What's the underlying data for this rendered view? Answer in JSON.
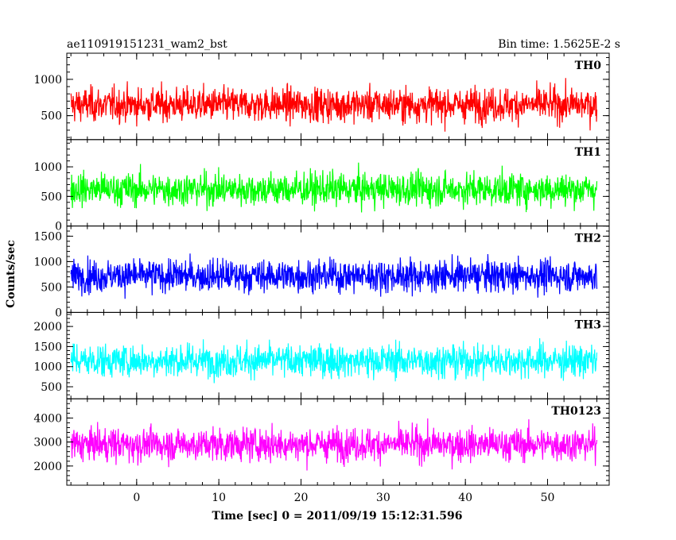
{
  "chart_data": {
    "type": "line",
    "title": "ae110919151231_wam2_bst",
    "subtitle": "Bin time: 1.5625E-2 s",
    "xlabel": "Time [sec] 0 = 2011/09/19 15:12:31.596",
    "ylabel": "Counts/sec",
    "xlim": [
      -8.5,
      57.5
    ],
    "data_x_range": [
      -8.0,
      56.0
    ],
    "bin_time": 0.015625,
    "x_ticks": [
      0,
      10,
      20,
      30,
      40,
      50
    ],
    "x_tick_labels": [
      "0",
      "10",
      "20",
      "30",
      "40",
      "50"
    ],
    "grid": false,
    "panels": [
      {
        "name": "TH0",
        "color": "#ff0000",
        "ylim": [
          170,
          1360
        ],
        "y_ticks": [
          500,
          1000
        ],
        "y_tick_labels": [
          "500",
          "1000"
        ],
        "mean": 650,
        "min": 170,
        "max": 1360
      },
      {
        "name": "TH1",
        "color": "#00ff00",
        "ylim": [
          0,
          1460
        ],
        "y_ticks": [
          0,
          500,
          1000
        ],
        "y_tick_labels": [
          "0",
          "500",
          "1000"
        ],
        "mean": 620,
        "min": 30,
        "max": 1460
      },
      {
        "name": "TH2",
        "color": "#0000ff",
        "ylim": [
          0,
          1700
        ],
        "y_ticks": [
          0,
          500,
          1000,
          1500
        ],
        "y_tick_labels": [
          "0",
          "500",
          "1000",
          "1500"
        ],
        "mean": 720,
        "min": 80,
        "max": 1700
      },
      {
        "name": "TH3",
        "color": "#00ffff",
        "ylim": [
          200,
          2350
        ],
        "y_ticks": [
          500,
          1000,
          1500,
          2000
        ],
        "y_tick_labels": [
          "500",
          "1000",
          "1500",
          "2000"
        ],
        "mean": 1150,
        "min": 250,
        "max": 2350
      },
      {
        "name": "TH0123",
        "color": "#ff00ff",
        "ylim": [
          1200,
          4800
        ],
        "y_ticks": [
          2000,
          3000,
          4000
        ],
        "y_tick_labels": [
          "2000",
          "3000",
          "4000"
        ],
        "mean": 2900,
        "min": 1250,
        "max": 4750
      }
    ]
  }
}
